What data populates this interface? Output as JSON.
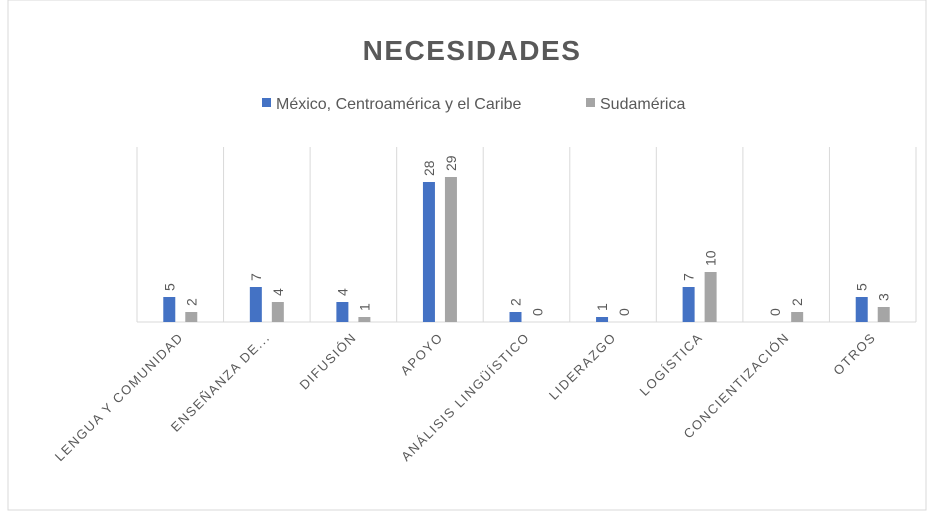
{
  "chart_data": {
    "type": "bar",
    "title": "NECESIDADES",
    "categories": [
      "LENGUA Y COMUNIDAD",
      "ENSEÑANZA DE...",
      "DIFUSIÓN",
      "APOYO",
      "ANÁLISIS LINGÜÍSTICO",
      "LIDERAZGO",
      "LOGÍSTICA",
      "CONCIENTIZACIÓN",
      "OTROS"
    ],
    "series": [
      {
        "name": "México, Centroamérica y el Caribe",
        "color": "#4472c4",
        "values": [
          5,
          7,
          4,
          28,
          2,
          1,
          7,
          0,
          5
        ]
      },
      {
        "name": "Sudamérica",
        "color": "#a5a5a5",
        "values": [
          2,
          4,
          1,
          29,
          0,
          0,
          10,
          2,
          3
        ]
      }
    ],
    "ylim": [
      0,
      35
    ],
    "legend": "top"
  }
}
